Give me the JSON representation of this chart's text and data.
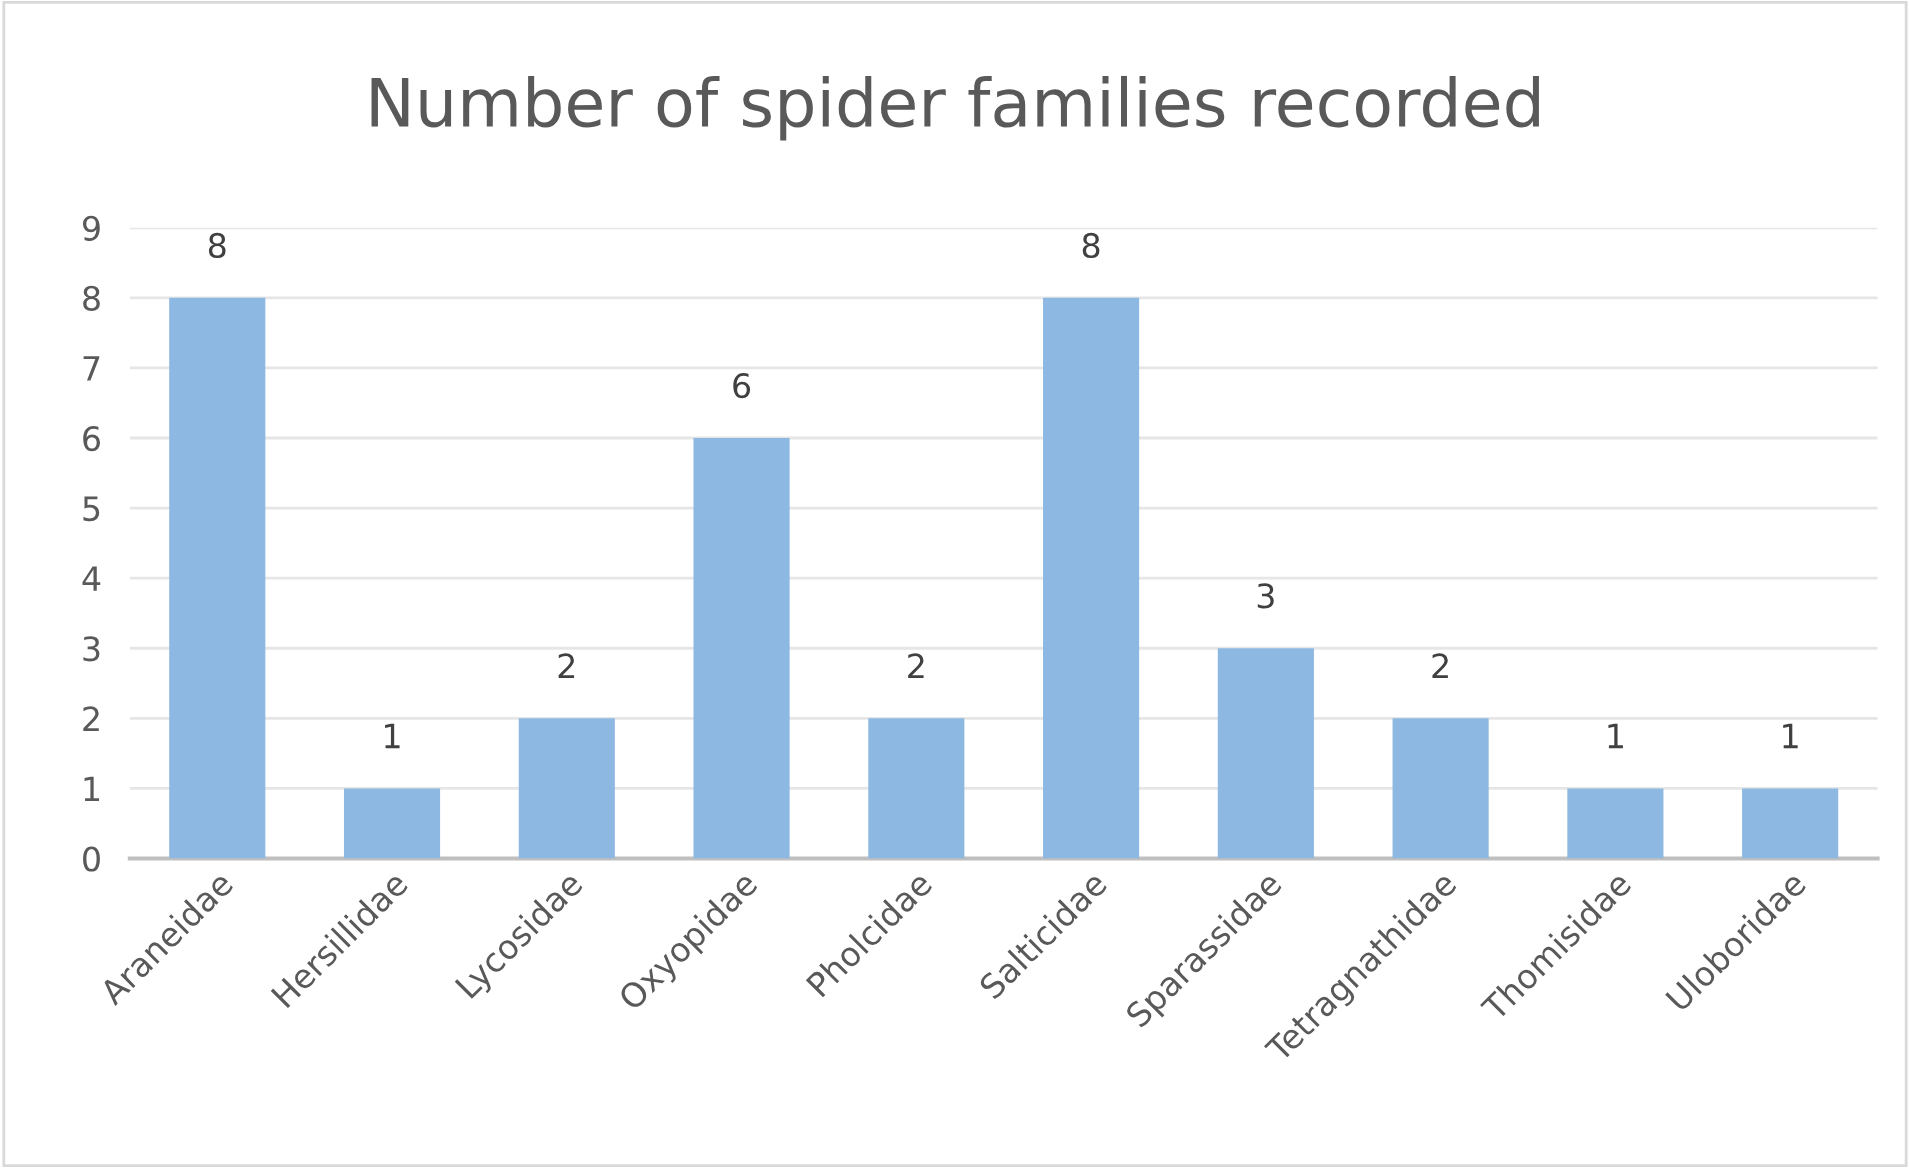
{
  "chart_data": {
    "type": "bar",
    "title": "Number of spider families recorded",
    "categories": [
      "Araneidae",
      "Hersillidae",
      "Lycosidae",
      "Oxyopidae",
      "Pholcidae",
      "Salticidae",
      "Sparassidae",
      "Tetragnathidae",
      "Thomisidae",
      "Uloboridae"
    ],
    "values": [
      8,
      1,
      2,
      6,
      2,
      8,
      3,
      2,
      1,
      1
    ],
    "color": "#8cb8e2",
    "ylim": [
      0,
      9
    ],
    "yticks": [
      0,
      1,
      2,
      3,
      4,
      5,
      6,
      7,
      8,
      9
    ],
    "grid": "y",
    "data_labels": true
  }
}
